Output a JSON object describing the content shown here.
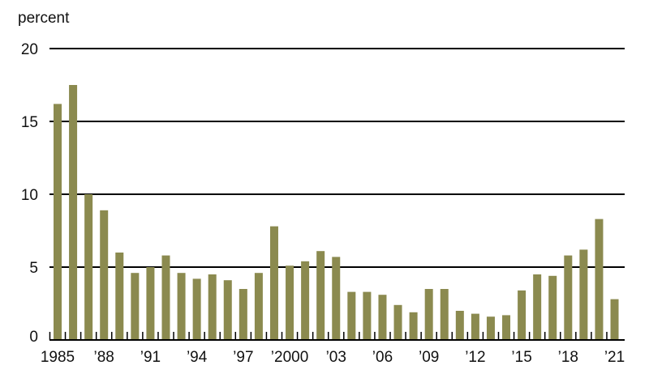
{
  "chart_data": {
    "type": "bar",
    "ylabel": "percent",
    "ylim": [
      0,
      20
    ],
    "yticks": [
      0,
      5,
      10,
      15,
      20
    ],
    "x": [
      1985,
      1986,
      1987,
      1988,
      1989,
      1990,
      1991,
      1992,
      1993,
      1994,
      1995,
      1996,
      1997,
      1998,
      1999,
      2000,
      2001,
      2002,
      2003,
      2004,
      2005,
      2006,
      2007,
      2008,
      2009,
      2010,
      2011,
      2012,
      2013,
      2014,
      2015,
      2016,
      2017,
      2018,
      2019,
      2020,
      2021
    ],
    "values": [
      16.2,
      17.5,
      10.0,
      8.9,
      6.0,
      4.6,
      5.0,
      5.8,
      4.6,
      4.2,
      4.5,
      4.1,
      3.5,
      4.6,
      7.8,
      5.1,
      5.4,
      6.1,
      5.7,
      3.3,
      3.3,
      3.1,
      2.4,
      1.9,
      3.5,
      3.5,
      2.0,
      1.8,
      1.6,
      1.7,
      3.4,
      4.5,
      4.4,
      5.8,
      6.2,
      8.3,
      2.8
    ],
    "xtick_labels": [
      {
        "year": 1985,
        "label": "1985"
      },
      {
        "year": 1988,
        "label": "’88"
      },
      {
        "year": 1991,
        "label": "’91"
      },
      {
        "year": 1994,
        "label": "’94"
      },
      {
        "year": 1997,
        "label": "’97"
      },
      {
        "year": 2000,
        "label": "’2000"
      },
      {
        "year": 2003,
        "label": "’03"
      },
      {
        "year": 2006,
        "label": "’06"
      },
      {
        "year": 2009,
        "label": "’09"
      },
      {
        "year": 2012,
        "label": "’12"
      },
      {
        "year": 2015,
        "label": "’15"
      },
      {
        "year": 2018,
        "label": "’18"
      },
      {
        "year": 2021,
        "label": "’21"
      }
    ],
    "grid": true,
    "colors": {
      "bar": "#8b8a4f",
      "grid": "#000000",
      "axis": "#000000"
    }
  }
}
